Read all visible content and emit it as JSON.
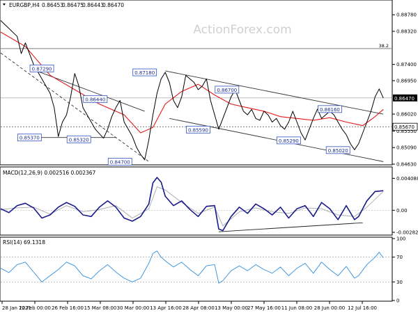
{
  "chart_data": {
    "type": "line",
    "watermark": "ActionForex.com",
    "price_panel": {
      "header": {
        "symbol": "EURGBP,H4",
        "ohlc": [
          "0.86453",
          "0.86475",
          "0.86443",
          "0.86470"
        ]
      },
      "ylim": [
        0.8463,
        0.8892
      ],
      "y_ticks": [
        {
          "value": 0.8878,
          "label": "0.88780"
        },
        {
          "value": 0.8832,
          "label": "0.88320"
        },
        {
          "value": 0.874,
          "label": "0.87400"
        },
        {
          "value": 0.8695,
          "label": "0.86950"
        },
        {
          "value": 0.8602,
          "label": "0.86020"
        },
        {
          "value": 0.8555,
          "label": "0.85550"
        },
        {
          "value": 0.8509,
          "label": "0.85090"
        },
        {
          "value": 0.8463,
          "label": "0.84630"
        }
      ],
      "current_price": {
        "value": 0.8647,
        "label": "0.86470"
      },
      "level_box": {
        "value": 0.8567,
        "label": "0.85670"
      },
      "fib_line": {
        "value": 0.8784,
        "label": "38.2"
      },
      "price_path": [
        [
          0,
          0.8862
        ],
        [
          2,
          0.884
        ],
        [
          4,
          0.8818
        ],
        [
          5,
          0.877
        ],
        [
          6,
          0.88
        ],
        [
          7,
          0.877
        ],
        [
          8,
          0.874
        ],
        [
          9,
          0.872
        ],
        [
          10,
          0.87
        ],
        [
          11,
          0.868
        ],
        [
          12,
          0.866
        ],
        [
          13,
          0.862
        ],
        [
          14,
          0.854
        ],
        [
          15,
          0.858
        ],
        [
          16,
          0.86
        ],
        [
          17,
          0.865
        ],
        [
          18,
          0.8715
        ],
        [
          19,
          0.868
        ],
        [
          20,
          0.862
        ],
        [
          21,
          0.86
        ],
        [
          23,
          0.856
        ],
        [
          25,
          0.8535
        ],
        [
          26,
          0.856
        ],
        [
          27,
          0.8595
        ],
        [
          28,
          0.862
        ],
        [
          29,
          0.864
        ],
        [
          30,
          0.858
        ],
        [
          31,
          0.856
        ],
        [
          32,
          0.854
        ],
        [
          33,
          0.851
        ],
        [
          34,
          0.849
        ],
        [
          35,
          0.8475
        ],
        [
          36,
          0.853
        ],
        [
          37,
          0.86
        ],
        [
          38,
          0.866
        ],
        [
          39,
          0.87
        ],
        [
          40,
          0.8718
        ],
        [
          41,
          0.869
        ],
        [
          42,
          0.864
        ],
        [
          43,
          0.862
        ],
        [
          44,
          0.865
        ],
        [
          45,
          0.871
        ],
        [
          46,
          0.87
        ],
        [
          47,
          0.869
        ],
        [
          48,
          0.867
        ],
        [
          49,
          0.868
        ],
        [
          50,
          0.87
        ],
        [
          51,
          0.864
        ],
        [
          52,
          0.86
        ],
        [
          53,
          0.856
        ],
        [
          54,
          0.859
        ],
        [
          55,
          0.862
        ],
        [
          56,
          0.865
        ],
        [
          57,
          0.867
        ],
        [
          58,
          0.864
        ],
        [
          59,
          0.861
        ],
        [
          60,
          0.86
        ],
        [
          61,
          0.8615
        ],
        [
          62,
          0.859
        ],
        [
          63,
          0.8585
        ],
        [
          64,
          0.861
        ],
        [
          65,
          0.86
        ],
        [
          66,
          0.858
        ],
        [
          67,
          0.859
        ],
        [
          68,
          0.857
        ],
        [
          69,
          0.856
        ],
        [
          70,
          0.858
        ],
        [
          71,
          0.861
        ],
        [
          72,
          0.858
        ],
        [
          73,
          0.855
        ],
        [
          74,
          0.853
        ],
        [
          75,
          0.856
        ],
        [
          76,
          0.859
        ],
        [
          77,
          0.8616
        ],
        [
          78,
          0.859
        ],
        [
          79,
          0.86
        ],
        [
          80,
          0.861
        ],
        [
          81,
          0.86
        ],
        [
          82,
          0.858
        ],
        [
          83,
          0.856
        ],
        [
          84,
          0.8545
        ],
        [
          85,
          0.852
        ],
        [
          86,
          0.8503
        ],
        [
          87,
          0.852
        ],
        [
          88,
          0.855
        ],
        [
          89,
          0.858
        ],
        [
          90,
          0.861
        ],
        [
          91,
          0.865
        ],
        [
          92,
          0.8672
        ],
        [
          93,
          0.8647
        ]
      ],
      "moving_average": [
        [
          0,
          0.883
        ],
        [
          6,
          0.879
        ],
        [
          12,
          0.871
        ],
        [
          18,
          0.867
        ],
        [
          24,
          0.863
        ],
        [
          30,
          0.86
        ],
        [
          34,
          0.855
        ],
        [
          37,
          0.8565
        ],
        [
          40,
          0.863
        ],
        [
          44,
          0.8665
        ],
        [
          48,
          0.8685
        ],
        [
          52,
          0.8655
        ],
        [
          56,
          0.863
        ],
        [
          60,
          0.862
        ],
        [
          64,
          0.861
        ],
        [
          68,
          0.8595
        ],
        [
          72,
          0.859
        ],
        [
          76,
          0.8585
        ],
        [
          80,
          0.8592
        ],
        [
          84,
          0.858
        ],
        [
          88,
          0.857
        ],
        [
          91,
          0.8595
        ],
        [
          93,
          0.8615
        ]
      ],
      "trend_lines": [
        {
          "from": [
            0,
            0.8772
          ],
          "to": [
            36,
            0.847
          ],
          "dash": true
        },
        {
          "from": [
            8,
            0.8725
          ],
          "to": [
            35,
            0.861
          ],
          "dash": false
        },
        {
          "from": [
            9,
            0.8537
          ],
          "to": [
            28,
            0.8537
          ],
          "dash": false
        },
        {
          "from": [
            40,
            0.8722
          ],
          "to": [
            93,
            0.8602
          ],
          "dash": false
        },
        {
          "from": [
            41,
            0.859
          ],
          "to": [
            93,
            0.847
          ],
          "dash": false
        }
      ],
      "labels": [
        {
          "text": "0.87290",
          "at": [
            10,
            0.8729
          ]
        },
        {
          "text": "0.86440",
          "at": [
            23,
            0.8644
          ]
        },
        {
          "text": "0.85370",
          "at": [
            7,
            0.8537
          ]
        },
        {
          "text": "0.85320",
          "at": [
            19,
            0.8532
          ]
        },
        {
          "text": "0.84700",
          "at": [
            29,
            0.847
          ]
        },
        {
          "text": "0.87180",
          "at": [
            35,
            0.8718
          ]
        },
        {
          "text": "0.86700",
          "at": [
            55,
            0.867
          ]
        },
        {
          "text": "0.85590",
          "at": [
            48,
            0.8559
          ]
        },
        {
          "text": "0.85290",
          "at": [
            70,
            0.8529
          ]
        },
        {
          "text": "0.86160",
          "at": [
            80,
            0.8616
          ]
        },
        {
          "text": "0.85020",
          "at": [
            82,
            0.8502
          ]
        }
      ]
    },
    "macd_panel": {
      "header": "MACD(12,26,9) 0.002516 0.002367",
      "ylim": [
        -0.003,
        0.0043
      ],
      "y_ticks": [
        {
          "value": 0.004088,
          "label": "0.004088"
        },
        {
          "value": 0.0,
          "label": "0.00"
        },
        {
          "value": -0.00282,
          "label": "-0.00282"
        }
      ],
      "macd": [
        [
          0,
          0.0002
        ],
        [
          2,
          -0.0003
        ],
        [
          4,
          0.0006
        ],
        [
          6,
          0.0009
        ],
        [
          8,
          0.0003
        ],
        [
          10,
          -0.001
        ],
        [
          12,
          -0.0006
        ],
        [
          14,
          0.0004
        ],
        [
          16,
          0.001
        ],
        [
          18,
          0.0005
        ],
        [
          20,
          -0.0006
        ],
        [
          22,
          -0.0008
        ],
        [
          24,
          0.0004
        ],
        [
          26,
          0.0012
        ],
        [
          28,
          0.0004
        ],
        [
          30,
          -0.001
        ],
        [
          32,
          -0.0014
        ],
        [
          34,
          -0.0008
        ],
        [
          36,
          0.0008
        ],
        [
          37,
          0.0035
        ],
        [
          38,
          0.0042
        ],
        [
          39,
          0.0036
        ],
        [
          40,
          0.0018
        ],
        [
          42,
          0.0006
        ],
        [
          44,
          0.0012
        ],
        [
          46,
          0.0001
        ],
        [
          48,
          -0.0008
        ],
        [
          50,
          0.0005
        ],
        [
          52,
          0.0006
        ],
        [
          53,
          -0.0024
        ],
        [
          54,
          -0.0026
        ],
        [
          56,
          -0.0008
        ],
        [
          58,
          0.0004
        ],
        [
          60,
          -0.0004
        ],
        [
          62,
          0.0008
        ],
        [
          64,
          0.0002
        ],
        [
          66,
          -0.0006
        ],
        [
          68,
          0.0004
        ],
        [
          70,
          -0.001
        ],
        [
          72,
          0.0002
        ],
        [
          74,
          0.0006
        ],
        [
          76,
          -0.0008
        ],
        [
          78,
          0.001
        ],
        [
          80,
          0.0002
        ],
        [
          82,
          -0.0012
        ],
        [
          84,
          0.0006
        ],
        [
          86,
          -0.0012
        ],
        [
          87,
          -0.0008
        ],
        [
          89,
          0.0012
        ],
        [
          91,
          0.0024
        ],
        [
          93,
          0.0025
        ]
      ],
      "signal": [
        [
          0,
          0.0001
        ],
        [
          4,
          0.0003
        ],
        [
          8,
          0.0004
        ],
        [
          12,
          -0.0005
        ],
        [
          16,
          0.0006
        ],
        [
          20,
          -0.0002
        ],
        [
          24,
          0.0001
        ],
        [
          28,
          0.0006
        ],
        [
          32,
          -0.001
        ],
        [
          36,
          0.0002
        ],
        [
          38,
          0.003
        ],
        [
          40,
          0.0026
        ],
        [
          44,
          0.001
        ],
        [
          48,
          -0.0004
        ],
        [
          52,
          0.0004
        ],
        [
          54,
          -0.002
        ],
        [
          58,
          -0.0002
        ],
        [
          62,
          0.0003
        ],
        [
          66,
          -0.0002
        ],
        [
          70,
          -0.0004
        ],
        [
          74,
          0.0003
        ],
        [
          78,
          0.0002
        ],
        [
          82,
          -0.0006
        ],
        [
          86,
          -0.0008
        ],
        [
          89,
          0.0004
        ],
        [
          93,
          0.0024
        ]
      ],
      "trend_line": {
        "from": [
          53,
          -0.00275
        ],
        "to": [
          88,
          -0.0016
        ]
      }
    },
    "rsi_panel": {
      "header": "RSI(14) 69.1318",
      "ylim": [
        0,
        100
      ],
      "y_ticks": [
        {
          "value": 100,
          "label": "100"
        },
        {
          "value": 70,
          "label": "70"
        },
        {
          "value": 30,
          "label": "30"
        },
        {
          "value": 0,
          "label": "0"
        }
      ],
      "levels": [
        70,
        30
      ],
      "rsi": [
        [
          0,
          52
        ],
        [
          2,
          45
        ],
        [
          4,
          58
        ],
        [
          6,
          62
        ],
        [
          8,
          46
        ],
        [
          10,
          30
        ],
        [
          12,
          40
        ],
        [
          14,
          50
        ],
        [
          16,
          62
        ],
        [
          18,
          56
        ],
        [
          20,
          40
        ],
        [
          22,
          35
        ],
        [
          24,
          48
        ],
        [
          26,
          58
        ],
        [
          28,
          46
        ],
        [
          30,
          36
        ],
        [
          32,
          30
        ],
        [
          34,
          36
        ],
        [
          36,
          60
        ],
        [
          37,
          76
        ],
        [
          38,
          80
        ],
        [
          39,
          70
        ],
        [
          40,
          64
        ],
        [
          42,
          54
        ],
        [
          44,
          62
        ],
        [
          46,
          50
        ],
        [
          48,
          40
        ],
        [
          50,
          56
        ],
        [
          52,
          58
        ],
        [
          53,
          28
        ],
        [
          54,
          32
        ],
        [
          56,
          48
        ],
        [
          58,
          56
        ],
        [
          60,
          48
        ],
        [
          62,
          58
        ],
        [
          64,
          50
        ],
        [
          66,
          44
        ],
        [
          68,
          54
        ],
        [
          70,
          40
        ],
        [
          72,
          52
        ],
        [
          74,
          60
        ],
        [
          76,
          44
        ],
        [
          78,
          62
        ],
        [
          80,
          50
        ],
        [
          82,
          40
        ],
        [
          84,
          55
        ],
        [
          86,
          36
        ],
        [
          87,
          40
        ],
        [
          89,
          58
        ],
        [
          91,
          70
        ],
        [
          92,
          78
        ],
        [
          93,
          69
        ]
      ]
    },
    "x_axis": {
      "range": [
        0,
        95
      ],
      "ticks": [
        {
          "pos": 0,
          "label": "28 Jan 2021"
        },
        {
          "pos": 9,
          "label": "12 Feb 00:00"
        },
        {
          "pos": 18,
          "label": "26 Feb 16:00"
        },
        {
          "pos": 27,
          "label": "15 Mar 08:00"
        },
        {
          "pos": 36,
          "label": "30 Mar 00:00"
        },
        {
          "pos": 45,
          "label": "13 Apr 16:00"
        },
        {
          "pos": 54,
          "label": "28 Apr 08:00"
        },
        {
          "pos": 63,
          "label": "13 May 00:00"
        },
        {
          "pos": 72,
          "label": "27 May 16:00"
        },
        {
          "pos": 81,
          "label": "11 Jun 08:00"
        },
        {
          "pos": 90,
          "label": "28 Jun 00:00"
        },
        {
          "pos": 99,
          "label": "12 Jul 16:00"
        }
      ]
    },
    "colors": {
      "price": "#000000",
      "ma": "#e31a1c",
      "trend": "#333333",
      "fib": "#555555",
      "macd": "#1a1a8c",
      "signal": "#b0b0b0",
      "rsi": "#2f8fe0",
      "label_border": "#3050c0",
      "label_text": "#1a2e8c",
      "grid": "#000000"
    }
  }
}
